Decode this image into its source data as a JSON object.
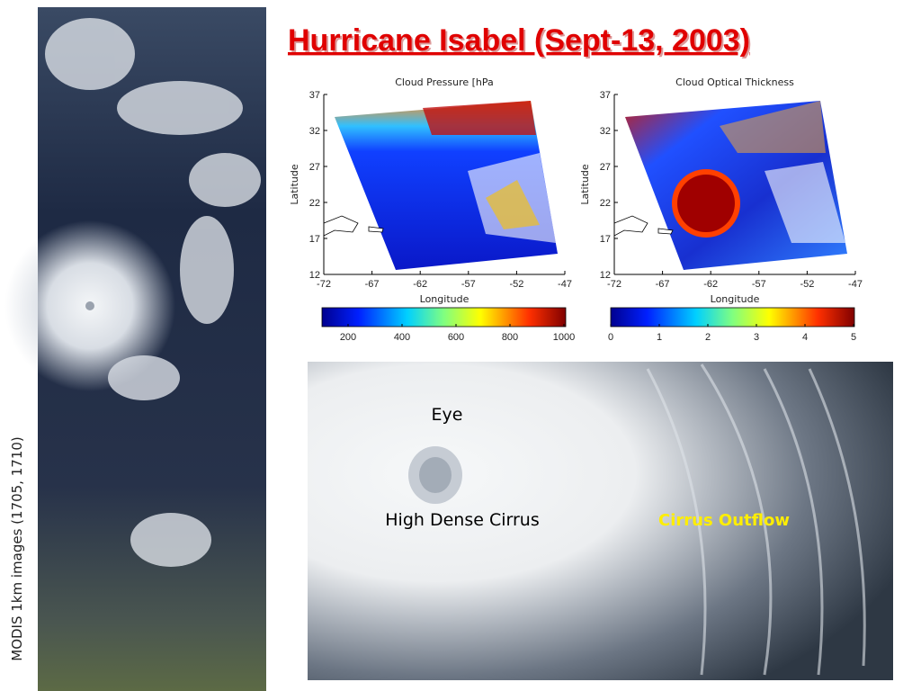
{
  "title": "Hurricane Isabel (Sept-13, 2003)",
  "side_caption": "MODIS 1km images (1705, 1710)",
  "maps": [
    {
      "title": "Cloud Pressure [hPa",
      "x_label": "Longitude",
      "y_label": "Latitude",
      "x_ticks": [
        "-72",
        "-67",
        "-62",
        "-57",
        "-52",
        "-47"
      ],
      "y_ticks": [
        "37",
        "32",
        "27",
        "22",
        "17",
        "12"
      ],
      "colorbar_ticks": [
        "200",
        "400",
        "600",
        "800",
        "1000"
      ]
    },
    {
      "title": "Cloud Optical Thickness",
      "x_label": "Longitude",
      "y_label": "Latitude",
      "x_ticks": [
        "-72",
        "-67",
        "-62",
        "-57",
        "-52",
        "-47"
      ],
      "y_ticks": [
        "37",
        "32",
        "27",
        "22",
        "17",
        "12"
      ],
      "colorbar_ticks": [
        "0",
        "1",
        "2",
        "3",
        "4",
        "5"
      ]
    }
  ],
  "photo_labels": {
    "eye": "Eye",
    "cirrus": "High Dense Cirrus",
    "outflow": "Cirrus Outflow"
  }
}
